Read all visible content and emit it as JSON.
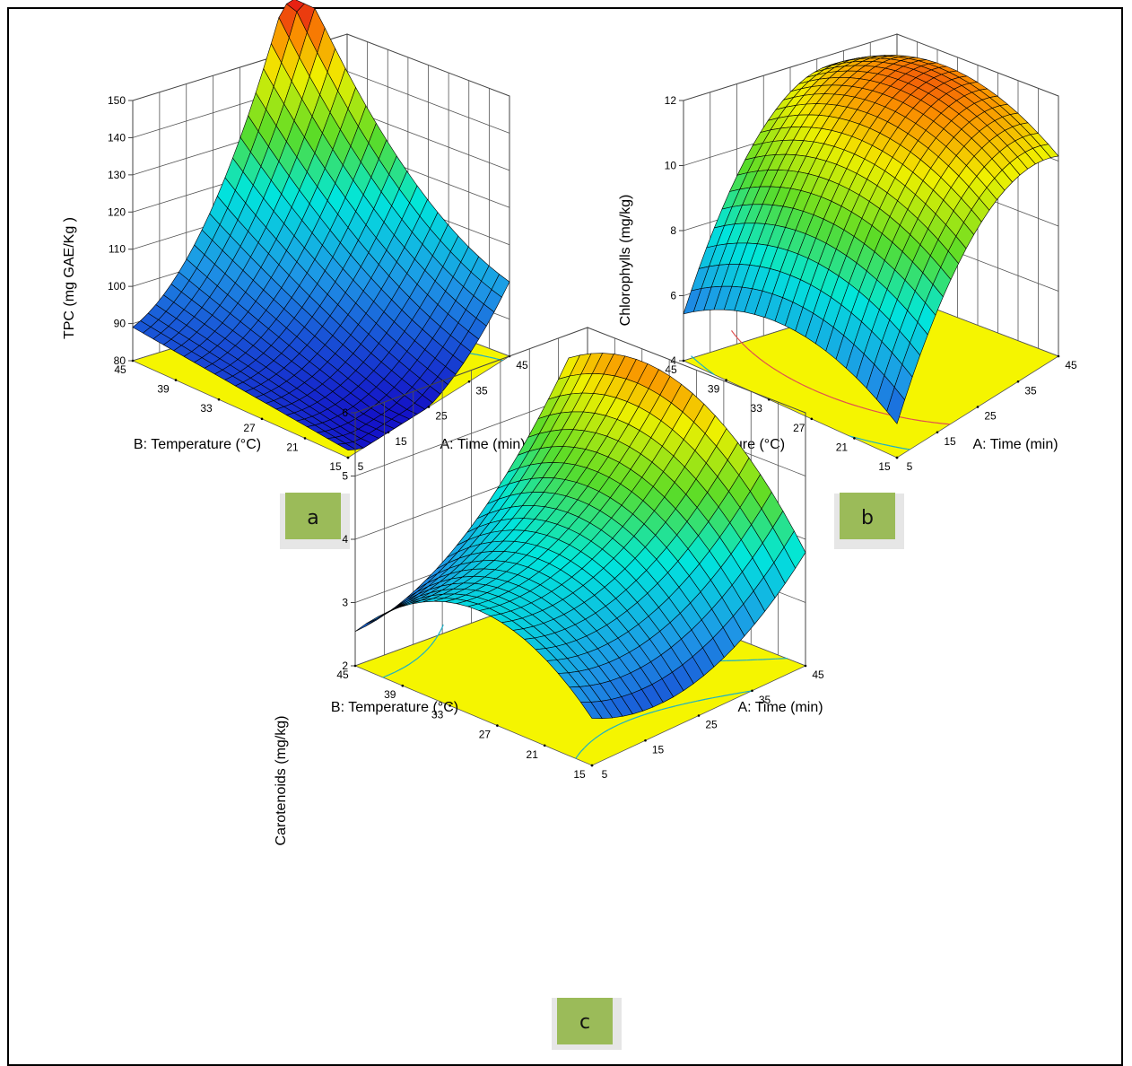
{
  "chart_data": [
    {
      "type": "surface",
      "panel_label": "a",
      "zlabel": "TPC (mg GAE/Kg  )",
      "xlabel": "A: Time (min)",
      "ylabel": "B: Temperature (°C)",
      "x_ticks": [
        "5",
        "15",
        "25",
        "35",
        "45"
      ],
      "y_ticks": [
        "15",
        "21",
        "27",
        "33",
        "39",
        "45"
      ],
      "z_ticks": [
        "80",
        "90",
        "100",
        "110",
        "120",
        "130",
        "140",
        "150"
      ],
      "xlim": [
        5,
        45
      ],
      "ylim": [
        15,
        45
      ],
      "zlim": [
        80,
        150
      ],
      "corner_values": {
        "x5_y15": 82,
        "x45_y15": 98,
        "x5_y45": 89,
        "x45_y45": 150
      },
      "minimum": {
        "x": 30,
        "y": 25,
        "z": 80
      }
    },
    {
      "type": "surface",
      "panel_label": "b",
      "zlabel": "Chlorophylls (mg/kg)",
      "xlabel": "A: Time (min)",
      "ylabel": "B: Temperature (°C)",
      "x_ticks": [
        "5",
        "15",
        "25",
        "35",
        "45"
      ],
      "y_ticks": [
        "15",
        "21",
        "27",
        "33",
        "39",
        "45"
      ],
      "z_ticks": [
        "4",
        "6",
        "8",
        "10",
        "12"
      ],
      "xlim": [
        5,
        45
      ],
      "ylim": [
        15,
        45
      ],
      "zlim": [
        4,
        12
      ],
      "corner_values": {
        "x5_y15": 4.0,
        "x45_y15": 10.0,
        "x5_y45": 5.2,
        "x45_y45": 7.0
      },
      "maximum": {
        "x": 38,
        "y": 30,
        "z": 11.6
      }
    },
    {
      "type": "surface",
      "panel_label": "c",
      "zlabel": "Carotenoids (mg/kg)",
      "xlabel": "A: Time (min)",
      "ylabel": "B: Temperature (°C)",
      "x_ticks": [
        "5",
        "15",
        "25",
        "35",
        "45"
      ],
      "y_ticks": [
        "15",
        "21",
        "27",
        "33",
        "39",
        "45"
      ],
      "z_ticks": [
        "2",
        "3",
        "4",
        "5",
        "6"
      ],
      "xlim": [
        5,
        45
      ],
      "ylim": [
        15,
        45
      ],
      "zlim": [
        2,
        6
      ],
      "corner_values": {
        "x5_y15": 2.1,
        "x45_y15": 4.4,
        "x5_y45": 4.3,
        "x45_y45": 5.4
      },
      "saddle": {
        "x": 20,
        "y": 30,
        "z": 3.1
      }
    }
  ],
  "colors": {
    "floor": "#f5f500",
    "panel_tag": "#9bbb59",
    "contour": "#1ab0c8"
  }
}
